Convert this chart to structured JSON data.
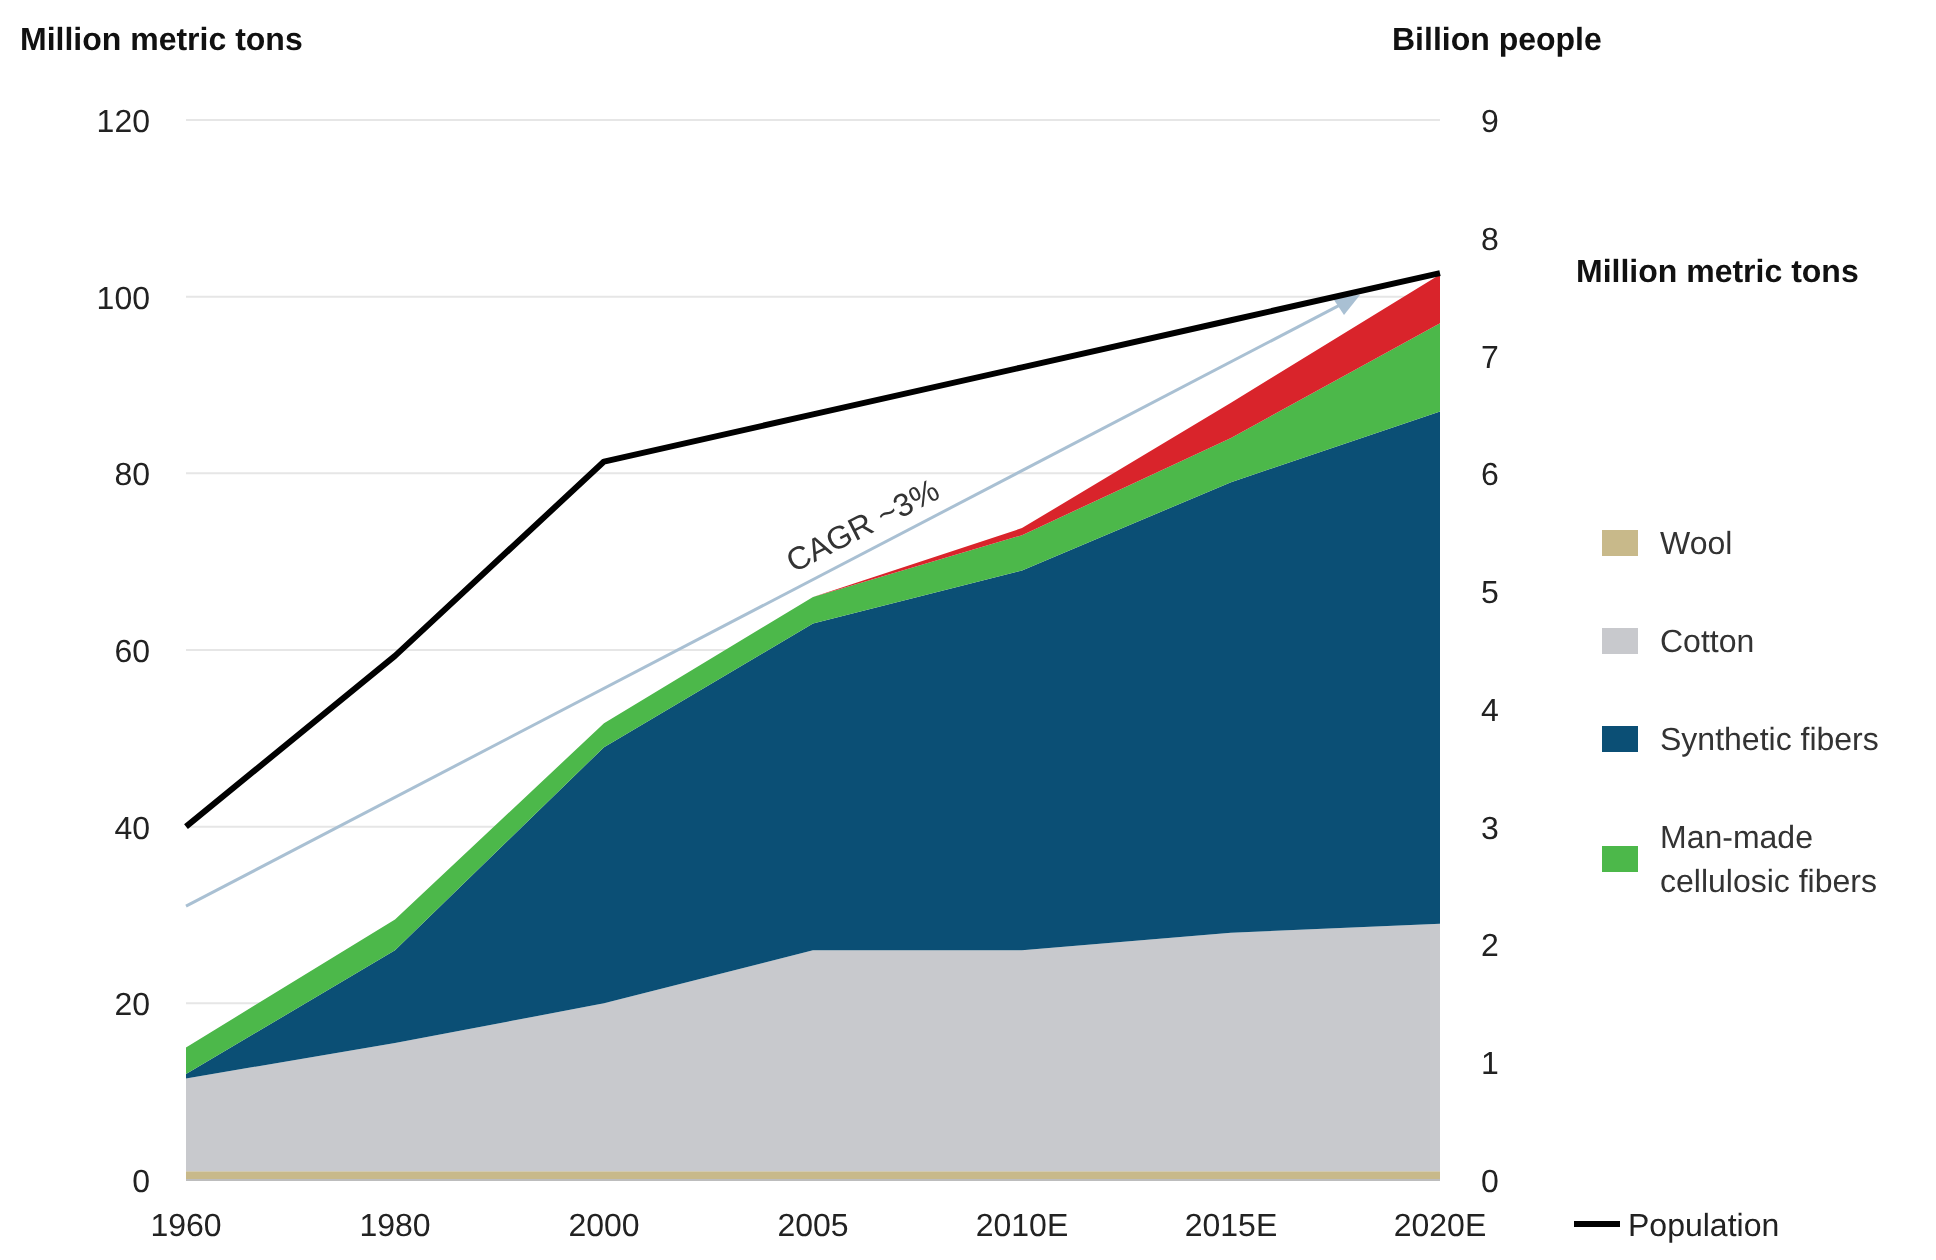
{
  "chart_data": {
    "type": "area",
    "stacked": true,
    "ylabel": "Million metric tons",
    "y2label": "Billion people",
    "legend_title": "Million metric tons",
    "categories": [
      "1960",
      "1980",
      "2000",
      "2005",
      "2010E",
      "2015E",
      "2020E"
    ],
    "series": [
      {
        "name": "Wool",
        "color": "#c8b98a",
        "values": [
          1,
          1,
          1,
          1,
          1,
          1,
          1
        ]
      },
      {
        "name": "Cotton",
        "color": "#c8c9cd",
        "values": [
          10.5,
          14.5,
          19,
          25,
          25,
          27,
          28
        ]
      },
      {
        "name": "Synthetic fibers",
        "color": "#0b4f75",
        "values": [
          0.5,
          10.5,
          29,
          37,
          43,
          51,
          58
        ]
      },
      {
        "name": "Man-made cellulosic fibers",
        "color": "#4cb84a",
        "values": [
          3,
          3.5,
          2.7,
          3,
          4,
          5,
          10
        ]
      },
      {
        "color": "#d9242b",
        "values": [
          0,
          0,
          0,
          0,
          0.8,
          4,
          5.5
        ]
      },
      {
        "name": "Population",
        "type": "line",
        "axis": "y2",
        "color": "#000000",
        "values": [
          3.0,
          4.45,
          6.1,
          6.5,
          6.9,
          7.3,
          7.7
        ]
      }
    ],
    "ylim": [
      0,
      120
    ],
    "yticks": [
      0,
      20,
      40,
      60,
      80,
      100,
      120
    ],
    "y2lim": [
      0,
      9
    ],
    "y2ticks": [
      0,
      1,
      2,
      3,
      4,
      5,
      6,
      7,
      8,
      9
    ],
    "grid": "y",
    "legend": "right",
    "annotations": [
      "CAGR ~3%"
    ]
  }
}
